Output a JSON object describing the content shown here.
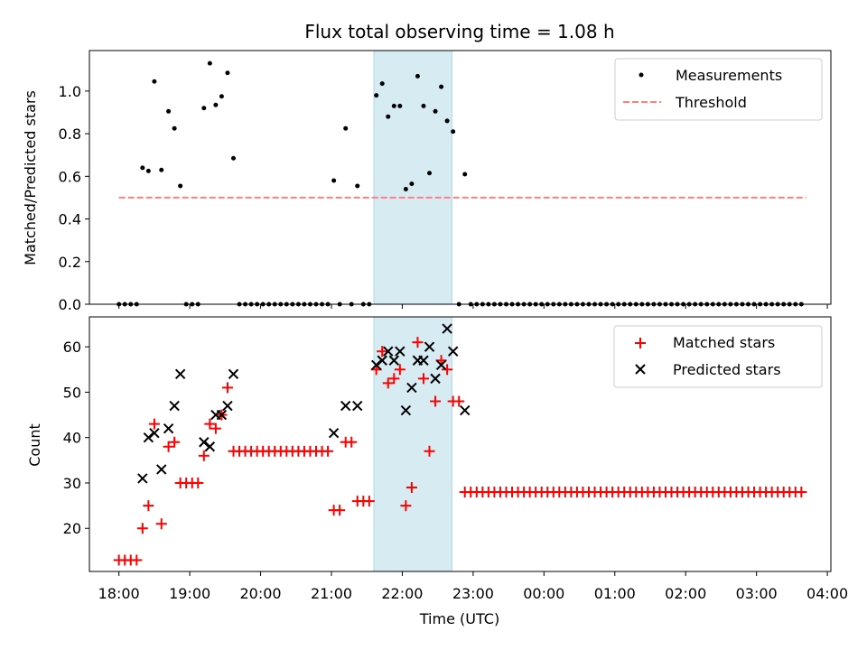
{
  "chart_data": [
    {
      "type": "scatter",
      "title": "Flux total observing time = 1.08 h",
      "xlabel": "",
      "ylabel": "Matched/Predicted stars",
      "ylim": [
        0,
        1.19
      ],
      "yticks": [
        0.0,
        0.2,
        0.4,
        0.6,
        0.8,
        1.0
      ],
      "ytick_labels": [
        "0.0",
        "0.2",
        "0.4",
        "0.6",
        "0.8",
        "1.0"
      ],
      "highlight_span": [
        "21:36",
        "22:42"
      ],
      "legend_position": "upper right",
      "series": [
        {
          "name": "Measurements",
          "style": "dot",
          "color": "#000000",
          "points": [
            [
              "18:00",
              0
            ],
            [
              "18:05",
              0
            ],
            [
              "18:10",
              0
            ],
            [
              "18:15",
              0
            ],
            [
              "18:20",
              0.64
            ],
            [
              "18:25",
              0.625
            ],
            [
              "18:30",
              1.045
            ],
            [
              "18:36",
              0.63
            ],
            [
              "18:42",
              0.905
            ],
            [
              "18:47",
              0.825
            ],
            [
              "18:52",
              0.555
            ],
            [
              "18:57",
              0
            ],
            [
              "19:02",
              0
            ],
            [
              "19:07",
              0
            ],
            [
              "19:12",
              0.92
            ],
            [
              "19:17",
              1.13
            ],
            [
              "19:22",
              0.935
            ],
            [
              "19:27",
              0.975
            ],
            [
              "19:32",
              1.085
            ],
            [
              "19:37",
              0.685
            ],
            [
              "19:42",
              0
            ],
            [
              "19:47",
              0
            ],
            [
              "19:52",
              0
            ],
            [
              "19:57",
              0
            ],
            [
              "20:02",
              0
            ],
            [
              "20:07",
              0
            ],
            [
              "20:12",
              0
            ],
            [
              "20:17",
              0
            ],
            [
              "20:22",
              0
            ],
            [
              "20:27",
              0
            ],
            [
              "20:32",
              0
            ],
            [
              "20:37",
              0
            ],
            [
              "20:42",
              0
            ],
            [
              "20:47",
              0
            ],
            [
              "20:52",
              0
            ],
            [
              "20:57",
              0
            ],
            [
              "21:02",
              0.58
            ],
            [
              "21:07",
              0
            ],
            [
              "21:12",
              0.825
            ],
            [
              "21:17",
              0
            ],
            [
              "21:22",
              0.555
            ],
            [
              "21:27",
              0
            ],
            [
              "21:32",
              0
            ],
            [
              "21:38",
              0.98
            ],
            [
              "21:43",
              1.035
            ],
            [
              "21:48",
              0.88
            ],
            [
              "21:53",
              0.93
            ],
            [
              "21:58",
              0.93
            ],
            [
              "22:03",
              0.54
            ],
            [
              "22:08",
              0.565
            ],
            [
              "22:13",
              1.07
            ],
            [
              "22:18",
              0.93
            ],
            [
              "22:23",
              0.615
            ],
            [
              "22:28",
              0.905
            ],
            [
              "22:33",
              1.02
            ],
            [
              "22:38",
              0.86
            ],
            [
              "22:43",
              0.81
            ],
            [
              "22:48",
              0
            ],
            [
              "22:53",
              0.61
            ]
          ],
          "zero_run": {
            "start": "22:58",
            "end": "03:42",
            "step_min": 5,
            "value": 0
          }
        },
        {
          "name": "Threshold",
          "style": "dashed-line",
          "color": "#ff7f7f",
          "points": [
            [
              "18:00",
              0.5
            ],
            [
              "03:42",
              0.5
            ]
          ]
        }
      ]
    },
    {
      "type": "scatter",
      "title": "",
      "xlabel": "Time (UTC)",
      "ylabel": "Count",
      "ylim": [
        10.5,
        66.6
      ],
      "yticks": [
        20,
        30,
        40,
        50,
        60
      ],
      "ytick_labels": [
        "20",
        "30",
        "40",
        "50",
        "60"
      ],
      "xlim": [
        "17:35",
        "04:03"
      ],
      "xticks": [
        "18:00",
        "19:00",
        "20:00",
        "21:00",
        "22:00",
        "23:00",
        "00:00",
        "01:00",
        "02:00",
        "03:00",
        "04:00"
      ],
      "xtick_labels": [
        "18:00",
        "19:00",
        "20:00",
        "21:00",
        "22:00",
        "23:00",
        "00:00",
        "01:00",
        "02:00",
        "03:00",
        "04:00"
      ],
      "highlight_span": [
        "21:36",
        "22:42"
      ],
      "legend_position": "upper right",
      "series": [
        {
          "name": "Matched stars",
          "style": "plus",
          "color": "#ff0000",
          "points": [
            [
              "18:00",
              13
            ],
            [
              "18:05",
              13
            ],
            [
              "18:10",
              13
            ],
            [
              "18:15",
              13
            ],
            [
              "18:20",
              20
            ],
            [
              "18:25",
              25
            ],
            [
              "18:30",
              43
            ],
            [
              "18:36",
              21
            ],
            [
              "18:42",
              38
            ],
            [
              "18:47",
              39
            ],
            [
              "18:52",
              30
            ],
            [
              "18:57",
              30
            ],
            [
              "19:02",
              30
            ],
            [
              "19:07",
              30
            ],
            [
              "19:12",
              36
            ],
            [
              "19:17",
              43
            ],
            [
              "19:22",
              42
            ],
            [
              "19:27",
              45
            ],
            [
              "19:32",
              51
            ],
            [
              "19:37",
              37
            ],
            [
              "19:42",
              37
            ],
            [
              "19:47",
              37
            ],
            [
              "19:52",
              37
            ],
            [
              "19:57",
              37
            ],
            [
              "20:02",
              37
            ],
            [
              "20:07",
              37
            ],
            [
              "20:12",
              37
            ],
            [
              "20:17",
              37
            ],
            [
              "20:22",
              37
            ],
            [
              "20:27",
              37
            ],
            [
              "20:32",
              37
            ],
            [
              "20:37",
              37
            ],
            [
              "20:42",
              37
            ],
            [
              "20:47",
              37
            ],
            [
              "20:52",
              37
            ],
            [
              "20:57",
              37
            ],
            [
              "21:02",
              24
            ],
            [
              "21:07",
              24
            ],
            [
              "21:12",
              39
            ],
            [
              "21:17",
              39
            ],
            [
              "21:22",
              26
            ],
            [
              "21:27",
              26
            ],
            [
              "21:32",
              26
            ],
            [
              "21:38",
              55
            ],
            [
              "21:43",
              59
            ],
            [
              "21:48",
              52
            ],
            [
              "21:53",
              53
            ],
            [
              "21:58",
              55
            ],
            [
              "22:03",
              25
            ],
            [
              "22:08",
              29
            ],
            [
              "22:13",
              61
            ],
            [
              "22:18",
              53
            ],
            [
              "22:23",
              37
            ],
            [
              "22:28",
              48
            ],
            [
              "22:33",
              57
            ],
            [
              "22:38",
              55
            ],
            [
              "22:43",
              48
            ],
            [
              "22:48",
              48
            ]
          ],
          "constant_run": {
            "start": "22:53",
            "end": "03:42",
            "step_min": 5,
            "value": 28
          }
        },
        {
          "name": "Predicted stars",
          "style": "x",
          "color": "#000000",
          "points": [
            [
              "18:20",
              31
            ],
            [
              "18:25",
              40
            ],
            [
              "18:30",
              41
            ],
            [
              "18:36",
              33
            ],
            [
              "18:42",
              42
            ],
            [
              "18:47",
              47
            ],
            [
              "18:52",
              54
            ],
            [
              "19:12",
              39
            ],
            [
              "19:17",
              38
            ],
            [
              "19:22",
              45
            ],
            [
              "19:27",
              45
            ],
            [
              "19:32",
              47
            ],
            [
              "19:37",
              54
            ],
            [
              "21:02",
              41
            ],
            [
              "21:12",
              47
            ],
            [
              "21:22",
              47
            ],
            [
              "21:38",
              56
            ],
            [
              "21:43",
              57
            ],
            [
              "21:48",
              59
            ],
            [
              "21:53",
              57
            ],
            [
              "21:58",
              59
            ],
            [
              "22:03",
              46
            ],
            [
              "22:08",
              51
            ],
            [
              "22:13",
              57
            ],
            [
              "22:18",
              57
            ],
            [
              "22:23",
              60
            ],
            [
              "22:28",
              53
            ],
            [
              "22:33",
              56
            ],
            [
              "22:38",
              64
            ],
            [
              "22:43",
              59
            ],
            [
              "22:53",
              46
            ]
          ]
        }
      ]
    }
  ]
}
